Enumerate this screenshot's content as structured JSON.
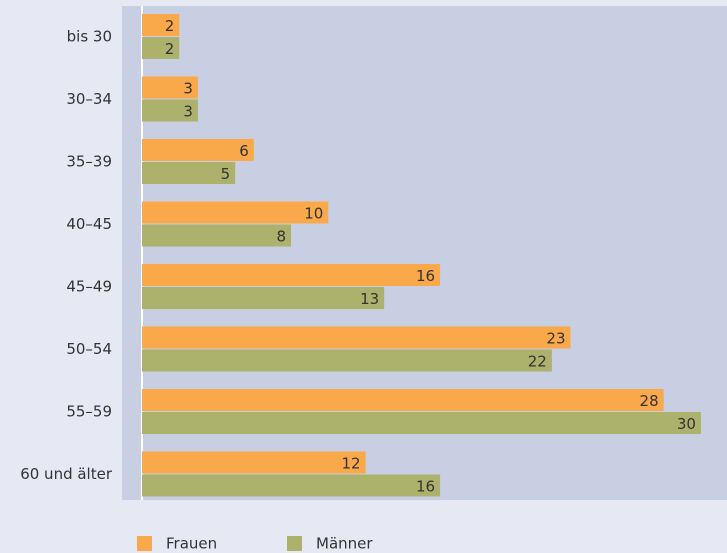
{
  "chart_data": {
    "type": "hbar",
    "categories": [
      "bis 30",
      "30–34",
      "35–39",
      "40–45",
      "45–49",
      "50–54",
      "55–59",
      "60 und älter"
    ],
    "series": [
      {
        "name": "Frauen",
        "color": "#f9a84a",
        "values": [
          2,
          3,
          6,
          10,
          16,
          23,
          28,
          12
        ]
      },
      {
        "name": "Männer",
        "color": "#acb26c",
        "values": [
          2,
          3,
          5,
          8,
          13,
          22,
          30,
          16
        ]
      }
    ],
    "xlim": [
      0,
      31.4
    ],
    "legend": "bottom-left"
  }
}
